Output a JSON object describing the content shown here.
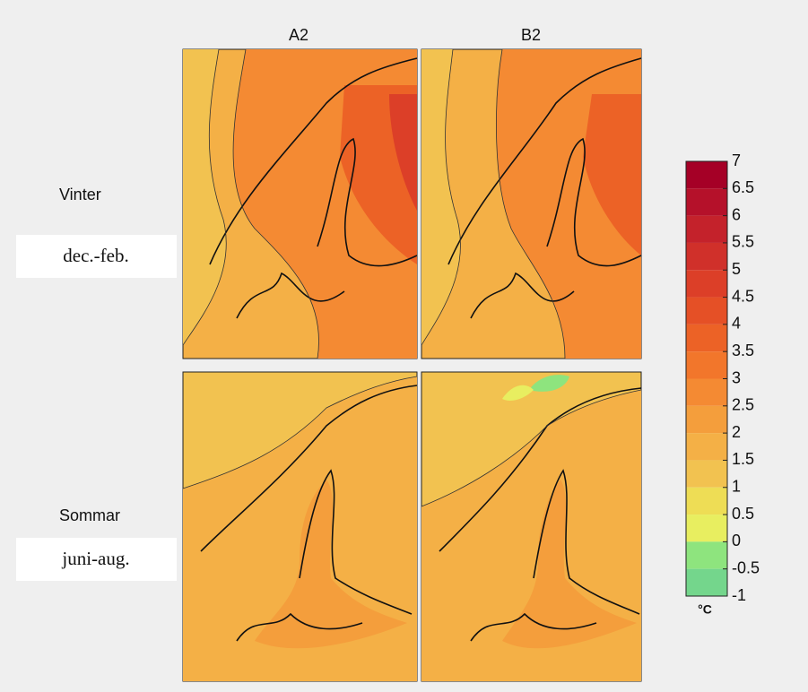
{
  "columns": [
    "A2",
    "B2"
  ],
  "rows": [
    {
      "label": "Vinter",
      "period": "dec.-feb."
    },
    {
      "label": "Sommar",
      "period": "juni-aug."
    }
  ],
  "colorbar": {
    "unit": "°C",
    "ticks": [
      7,
      6.5,
      6,
      5.5,
      5,
      4.5,
      4,
      3.5,
      3,
      2.5,
      2,
      1.5,
      1,
      0.5,
      0,
      -0.5,
      -1
    ],
    "colors": [
      "#a50026",
      "#b5112a",
      "#c4222b",
      "#d0302a",
      "#dc3f28",
      "#e55026",
      "#ec6226",
      "#f2762b",
      "#f48a33",
      "#f49e3c",
      "#f4b046",
      "#f2c250",
      "#eedd55",
      "#e8ee60",
      "#8ee47e",
      "#74d68c"
    ]
  }
}
